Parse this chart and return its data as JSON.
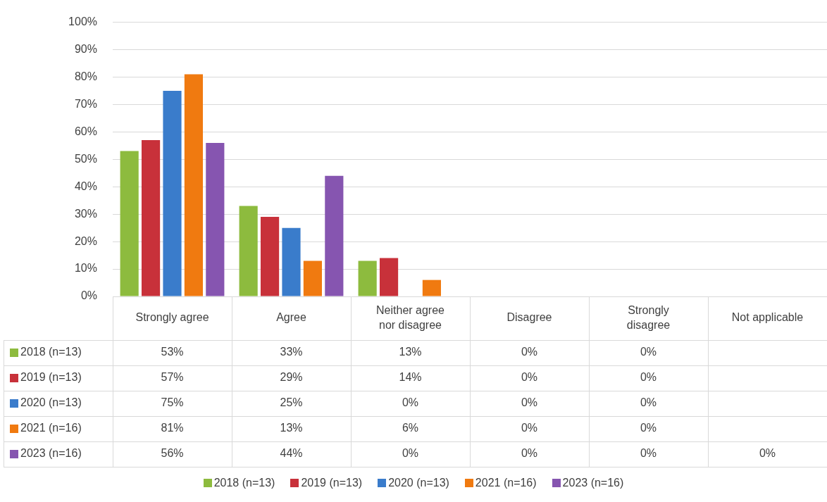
{
  "chart_data": {
    "type": "bar",
    "categories": [
      "Strongly agree",
      "Agree",
      "Neither agree nor disagree",
      "Disagree",
      "Strongly disagree",
      "Not applicable"
    ],
    "series": [
      {
        "name": "2018 (n=13)",
        "color": "#8dbb3e",
        "values": [
          53,
          33,
          13,
          0,
          0,
          null
        ],
        "value_labels": [
          "53%",
          "33%",
          "13%",
          "0%",
          "0%",
          null
        ]
      },
      {
        "name": "2019 (n=13)",
        "color": "#c8313a",
        "values": [
          57,
          29,
          14,
          0,
          0,
          null
        ],
        "value_labels": [
          "57%",
          "29%",
          "14%",
          "0%",
          "0%",
          null
        ]
      },
      {
        "name": "2020 (n=13)",
        "color": "#3a7ccb",
        "values": [
          75,
          25,
          0,
          0,
          0,
          null
        ],
        "value_labels": [
          "75%",
          "25%",
          "0%",
          "0%",
          "0%",
          null
        ]
      },
      {
        "name": "2021 (n=16)",
        "color": "#f07a10",
        "values": [
          81,
          13,
          6,
          0,
          0,
          null
        ],
        "value_labels": [
          "81%",
          "13%",
          "6%",
          "0%",
          "0%",
          null
        ]
      },
      {
        "name": "2023 (n=16)",
        "color": "#8655b0",
        "values": [
          56,
          44,
          0,
          0,
          0,
          0
        ],
        "value_labels": [
          "56%",
          "44%",
          "0%",
          "0%",
          "0%",
          "0%"
        ]
      }
    ],
    "ylim": [
      0,
      100
    ],
    "yticks": [
      {
        "value": 0,
        "label": "0%"
      },
      {
        "value": 10,
        "label": "10%"
      },
      {
        "value": 20,
        "label": "20%"
      },
      {
        "value": 30,
        "label": "30%"
      },
      {
        "value": 40,
        "label": "40%"
      },
      {
        "value": 50,
        "label": "50%"
      },
      {
        "value": 60,
        "label": "60%"
      },
      {
        "value": 70,
        "label": "70%"
      },
      {
        "value": 80,
        "label": "80%"
      },
      {
        "value": 90,
        "label": "90%"
      },
      {
        "value": 100,
        "label": "100%"
      }
    ],
    "grid": "y",
    "legend": "bottom"
  }
}
